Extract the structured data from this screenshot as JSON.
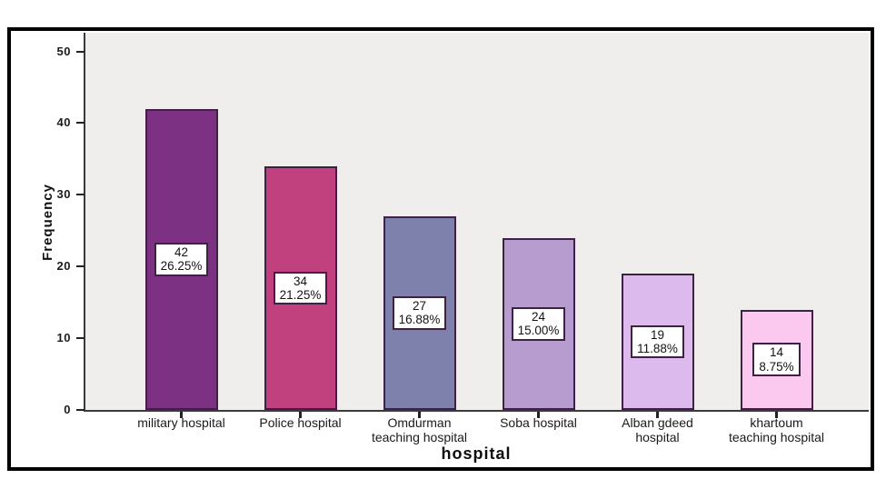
{
  "chart_data": {
    "type": "bar",
    "title": "",
    "xlabel": "hospital",
    "ylabel": "Frequency",
    "ylim": [
      0,
      52.6
    ],
    "yticks": [
      0,
      10,
      20,
      30,
      40,
      50
    ],
    "grid": false,
    "legend": "none",
    "categories": [
      "military hospital",
      "Police hospital",
      "Omdurman\nteaching hospital",
      "Soba hospital",
      "Alban gdeed\nhospital",
      "khartoum\nteaching hospital"
    ],
    "values": [
      42,
      34,
      27,
      24,
      19,
      14
    ],
    "percent_labels": [
      "26.25%",
      "21.25%",
      "16.88%",
      "15.00%",
      "11.88%",
      "8.75%"
    ],
    "bar_colors": [
      "#7c3183",
      "#c1417f",
      "#7d81ac",
      "#b79ccf",
      "#dcbaee",
      "#fbc8f0"
    ],
    "bar_border_color": "#3f2145",
    "plot_bg": "#efeeec",
    "axis_color": "#3a3a3a",
    "frame_border_color": "#000000"
  }
}
